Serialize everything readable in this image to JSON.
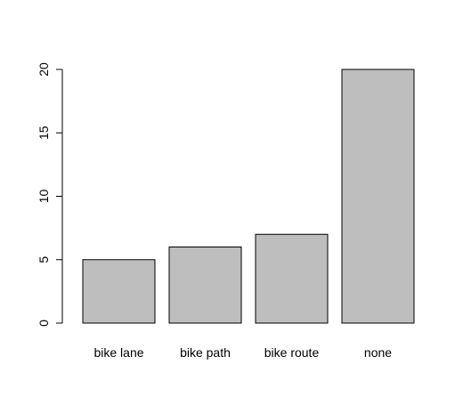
{
  "chart_data": {
    "type": "bar",
    "title": "",
    "xlabel": "",
    "ylabel": "",
    "categories": [
      "bike lane",
      "bike path",
      "bike route",
      "none"
    ],
    "values": [
      5,
      6,
      7,
      20
    ],
    "ylim": [
      0,
      20
    ],
    "yticks": [
      "0",
      "5",
      "10",
      "15",
      "20"
    ],
    "bar_color": "#bebebe",
    "grid": false
  }
}
